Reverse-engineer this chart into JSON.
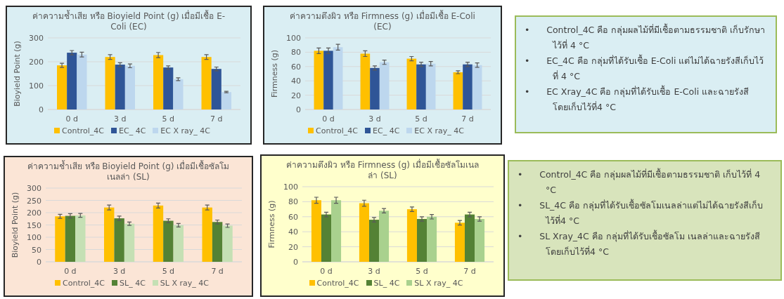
{
  "chart_data": [
    {
      "type": "bar",
      "title": "ค่าความช้ำเสีย หรือ Bioyield Point (g) เมื่อมีเชื้อ E-Coli (EC)",
      "ylabel": "Bioyield Point (g)",
      "categories": [
        "0 d",
        "3 d",
        "5 d",
        "7 d"
      ],
      "ylim": [
        0,
        300
      ],
      "yticks": [
        0,
        100,
        200,
        300
      ],
      "grid": "y",
      "legend": "bottom",
      "series": [
        {
          "name": "Control_4C",
          "color": "#ffc000",
          "values": [
            185,
            220,
            228,
            220
          ],
          "errors": [
            9,
            10,
            11,
            10
          ]
        },
        {
          "name": "EC_ 4C",
          "color": "#2f5597",
          "values": [
            238,
            188,
            176,
            170
          ],
          "errors": [
            9,
            8,
            7,
            8
          ]
        },
        {
          "name": "EC X ray_ 4C",
          "color": "#bdd7ee",
          "values": [
            230,
            183,
            127,
            73
          ],
          "errors": [
            10,
            8,
            6,
            3
          ]
        }
      ]
    },
    {
      "type": "bar",
      "title": "ค่าความตึงผิว หรือ Firmness (g) เมื่อมีเชื้อ E-Coli (EC)",
      "ylabel": "Firmness (g)",
      "categories": [
        "0 d",
        "3 d",
        "5 d",
        "7 d"
      ],
      "ylim": [
        0,
        100
      ],
      "yticks": [
        0,
        20,
        40,
        60,
        80,
        100
      ],
      "grid": "y",
      "legend": "bottom",
      "series": [
        {
          "name": "Control_4C",
          "color": "#ffc000",
          "values": [
            82,
            78,
            71,
            52
          ],
          "errors": [
            4,
            4,
            3,
            2
          ]
        },
        {
          "name": "EC_ 4C",
          "color": "#2f5597",
          "values": [
            82,
            58,
            63,
            63
          ],
          "errors": [
            4,
            3,
            3,
            3
          ]
        },
        {
          "name": "EC X ray_ 4C",
          "color": "#bdd7ee",
          "values": [
            87,
            66,
            64,
            62
          ],
          "errors": [
            4,
            3,
            3,
            3
          ]
        }
      ]
    },
    {
      "type": "other",
      "annotations": [
        "•      Control_4C คือ กลุ่มผลไม้ที่มีเชื้อตามธรรมชาติ เก็บรักษาไว้ที่ 4 °C",
        "•      EC_4C คือ กลุ่มที่ได้รับเชื้อ E-Coli แต่ไม่ได้ฉายรังสีเก็บไว้ที่ 4 °C",
        "•      EC Xray_4C คือ กลุ่มที่ได้รับเชื้อ E-Coli และฉายรังสี โดยเก็บไว้ที่4 °C"
      ]
    },
    {
      "type": "bar",
      "title": "ค่าความช้ำเสีย หรือ Bioyield Point (g) เมื่อมีเชื้อซัลโมเนลล่า (SL)",
      "ylabel": "Bioyield Point (g)",
      "categories": [
        "0 d",
        "3 d",
        "5 d",
        "7 d"
      ],
      "ylim": [
        0,
        300
      ],
      "yticks": [
        0,
        50,
        100,
        150,
        200,
        250,
        300
      ],
      "grid": "y",
      "legend": "bottom",
      "series": [
        {
          "name": "Control_4C",
          "color": "#ffc000",
          "values": [
            185,
            221,
            229,
            221
          ],
          "errors": [
            8,
            10,
            10,
            10
          ]
        },
        {
          "name": "SL_ 4C",
          "color": "#548235",
          "values": [
            187,
            177,
            167,
            162
          ],
          "errors": [
            9,
            9,
            8,
            8
          ]
        },
        {
          "name": "SL X ray_ 4C",
          "color": "#c5e0b4",
          "values": [
            189,
            155,
            149,
            147
          ],
          "errors": [
            8,
            7,
            7,
            7
          ]
        }
      ]
    },
    {
      "type": "bar",
      "title": "ค่าความตึงผิว หรือ Firmness (g) เมื่อมีเชื้อซัลโมเนลล่า (SL)",
      "ylabel": "Firmness (g)",
      "categories": [
        "0 d",
        "3 d",
        "5 d",
        "7 d"
      ],
      "ylim": [
        0,
        100
      ],
      "yticks": [
        0,
        20,
        40,
        60,
        80,
        100
      ],
      "grid": "y",
      "legend": "bottom",
      "series": [
        {
          "name": "Control_4C",
          "color": "#ffc000",
          "values": [
            82,
            78,
            70,
            52
          ],
          "errors": [
            4,
            4,
            3,
            3
          ]
        },
        {
          "name": "SL_ 4C",
          "color": "#548235",
          "values": [
            63,
            56,
            57,
            63
          ],
          "errors": [
            3,
            3,
            3,
            3
          ]
        },
        {
          "name": "SL X ray_ 4C",
          "color": "#a9d18e",
          "values": [
            82,
            68,
            60,
            57
          ],
          "errors": [
            4,
            3,
            3,
            3
          ]
        }
      ]
    },
    {
      "type": "other",
      "annotations": [
        "•      Control_4C คือ กลุ่มผลไม้ที่มีเชื้อตามธรรมชาติ เก็บไว้ที่ 4 °C",
        "•      SL_4C คือ กลุ่มที่ได้รับเชื้อซัลโมเนลล่าแต่ไม่ได้ฉายรังสีเก็บไว้ที่4 °C",
        "•      SL Xray_4C คือ กลุ่มที่ได้รับเชื้อซัลโม เนลล่าและฉายรังสี โดยเก็บไว้ที่4 °C"
      ]
    }
  ]
}
